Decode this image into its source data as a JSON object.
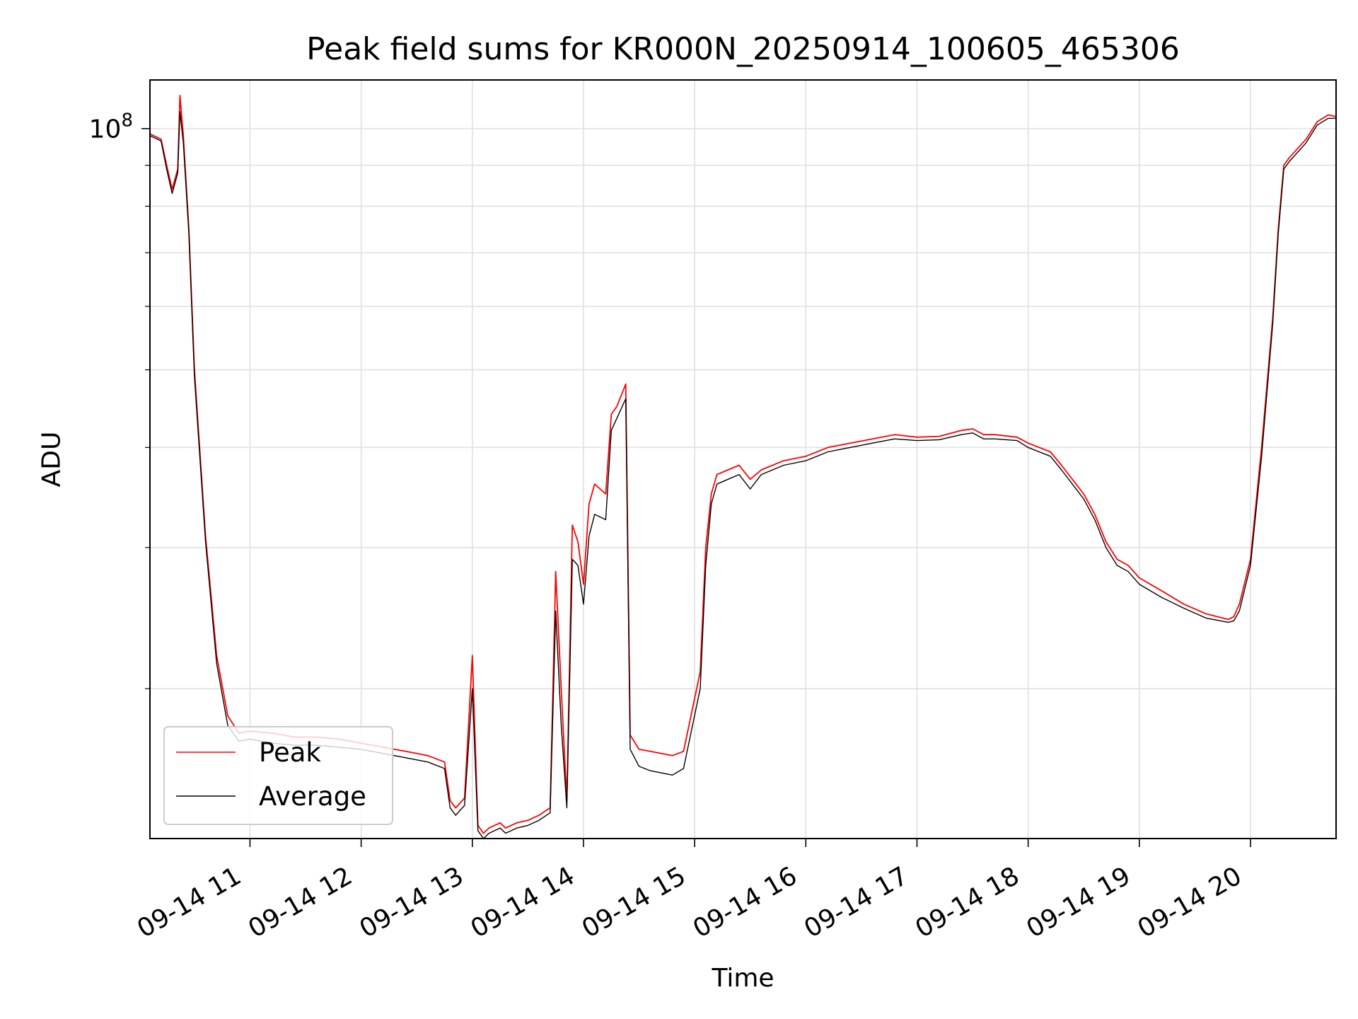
{
  "chart_data": {
    "type": "line",
    "title": "Peak field sums for KR000N_20250914_100605_465306",
    "xlabel": "Time",
    "ylabel": "ADU",
    "y_scale": "log",
    "y_major_tick_label": {
      "base": "10",
      "exponent": "8"
    },
    "x_tick_labels": [
      "09-14 11",
      "09-14 12",
      "09-14 13",
      "09-14 14",
      "09-14 15",
      "09-14 16",
      "09-14 17",
      "09-14 18",
      "09-14 19",
      "09-14 20"
    ],
    "x_tick_hours": [
      11,
      12,
      13,
      14,
      15,
      16,
      17,
      18,
      19,
      20
    ],
    "xlim_hours": [
      10.1,
      20.77
    ],
    "ylim": [
      13000000,
      115000000
    ],
    "grid": true,
    "legend_position": "lower-left",
    "series": [
      {
        "name": "Peak",
        "color": "#ff0000",
        "x_hours": [
          10.1,
          10.2,
          10.25,
          10.3,
          10.35,
          10.37,
          10.4,
          10.45,
          10.5,
          10.6,
          10.7,
          10.8,
          10.9,
          11.0,
          11.2,
          11.4,
          11.6,
          11.8,
          12.0,
          12.2,
          12.4,
          12.6,
          12.75,
          12.8,
          12.85,
          12.93,
          13.0,
          13.05,
          13.1,
          13.15,
          13.25,
          13.3,
          13.4,
          13.5,
          13.6,
          13.7,
          13.75,
          13.8,
          13.85,
          13.9,
          13.95,
          14.0,
          14.05,
          14.1,
          14.2,
          14.25,
          14.3,
          14.38,
          14.42,
          14.5,
          14.6,
          14.7,
          14.8,
          14.9,
          15.05,
          15.1,
          15.15,
          15.2,
          15.3,
          15.4,
          15.5,
          15.6,
          15.8,
          16.0,
          16.2,
          16.4,
          16.6,
          16.8,
          17.0,
          17.2,
          17.4,
          17.5,
          17.6,
          17.7,
          17.9,
          18.0,
          18.2,
          18.3,
          18.5,
          18.6,
          18.7,
          18.8,
          18.9,
          19.0,
          19.2,
          19.4,
          19.6,
          19.8,
          19.85,
          19.9,
          20.0,
          20.1,
          20.2,
          20.25,
          20.3,
          20.35,
          20.5,
          20.6,
          20.7,
          20.77
        ],
        "values": [
          98500000,
          97000000,
          90000000,
          84000000,
          89000000,
          110000000,
          98000000,
          75000000,
          50000000,
          31000000,
          22000000,
          18500000,
          17600000,
          17700000,
          17600000,
          17400000,
          17400000,
          17300000,
          17100000,
          16900000,
          16700000,
          16500000,
          16200000,
          14500000,
          14200000,
          14600000,
          22000000,
          13500000,
          13200000,
          13400000,
          13600000,
          13400000,
          13600000,
          13700000,
          13900000,
          14200000,
          28000000,
          20000000,
          14500000,
          32000000,
          30500000,
          27000000,
          34000000,
          36000000,
          35000000,
          44000000,
          45000000,
          48000000,
          17500000,
          16800000,
          16700000,
          16600000,
          16500000,
          16700000,
          21000000,
          30000000,
          35000000,
          37000000,
          37500000,
          38000000,
          36500000,
          37500000,
          38500000,
          39000000,
          40000000,
          40500000,
          41000000,
          41500000,
          41200000,
          41300000,
          42000000,
          42200000,
          41500000,
          41500000,
          41200000,
          40500000,
          39500000,
          38000000,
          35000000,
          33000000,
          30500000,
          29000000,
          28500000,
          27500000,
          26500000,
          25500000,
          24800000,
          24400000,
          24600000,
          25500000,
          29000000,
          40000000,
          58000000,
          75000000,
          90000000,
          92000000,
          97000000,
          102000000,
          104000000,
          103500000
        ]
      },
      {
        "name": "Average",
        "color": "#000000",
        "x_hours": [
          10.1,
          10.2,
          10.25,
          10.3,
          10.35,
          10.37,
          10.4,
          10.45,
          10.5,
          10.6,
          10.7,
          10.8,
          10.9,
          11.0,
          11.2,
          11.4,
          11.6,
          11.8,
          12.0,
          12.2,
          12.4,
          12.6,
          12.75,
          12.8,
          12.85,
          12.93,
          13.0,
          13.05,
          13.1,
          13.15,
          13.25,
          13.3,
          13.4,
          13.5,
          13.6,
          13.7,
          13.75,
          13.8,
          13.85,
          13.9,
          13.95,
          14.0,
          14.05,
          14.1,
          14.2,
          14.25,
          14.3,
          14.38,
          14.42,
          14.5,
          14.6,
          14.7,
          14.8,
          14.9,
          15.05,
          15.1,
          15.15,
          15.2,
          15.3,
          15.4,
          15.5,
          15.6,
          15.8,
          16.0,
          16.2,
          16.4,
          16.6,
          16.8,
          17.0,
          17.2,
          17.4,
          17.5,
          17.6,
          17.7,
          17.9,
          18.0,
          18.2,
          18.3,
          18.5,
          18.6,
          18.7,
          18.8,
          18.9,
          19.0,
          19.2,
          19.4,
          19.6,
          19.8,
          19.85,
          19.9,
          20.0,
          20.1,
          20.2,
          20.25,
          20.3,
          20.35,
          20.5,
          20.6,
          20.7,
          20.77
        ],
        "values": [
          98000000,
          96500000,
          89000000,
          83000000,
          88000000,
          105000000,
          96000000,
          74000000,
          49000000,
          30500000,
          21500000,
          18000000,
          17200000,
          17300000,
          17100000,
          17000000,
          17000000,
          16900000,
          16800000,
          16600000,
          16400000,
          16200000,
          15900000,
          14200000,
          13900000,
          14300000,
          20000000,
          13300000,
          13000000,
          13200000,
          13400000,
          13200000,
          13400000,
          13500000,
          13700000,
          14000000,
          25000000,
          18000000,
          14200000,
          29000000,
          28500000,
          25500000,
          31000000,
          33000000,
          32500000,
          42000000,
          43500000,
          46000000,
          16800000,
          16000000,
          15800000,
          15700000,
          15600000,
          15900000,
          20000000,
          28500000,
          34000000,
          36000000,
          36500000,
          37000000,
          35500000,
          37000000,
          38000000,
          38500000,
          39500000,
          40000000,
          40500000,
          41000000,
          40800000,
          40900000,
          41500000,
          41700000,
          41000000,
          41000000,
          40800000,
          40000000,
          39000000,
          37500000,
          34500000,
          32500000,
          30000000,
          28500000,
          28000000,
          27000000,
          26000000,
          25200000,
          24500000,
          24200000,
          24300000,
          25000000,
          28500000,
          39000000,
          57000000,
          74000000,
          89000000,
          91000000,
          96000000,
          101000000,
          103000000,
          103000000
        ]
      }
    ]
  }
}
